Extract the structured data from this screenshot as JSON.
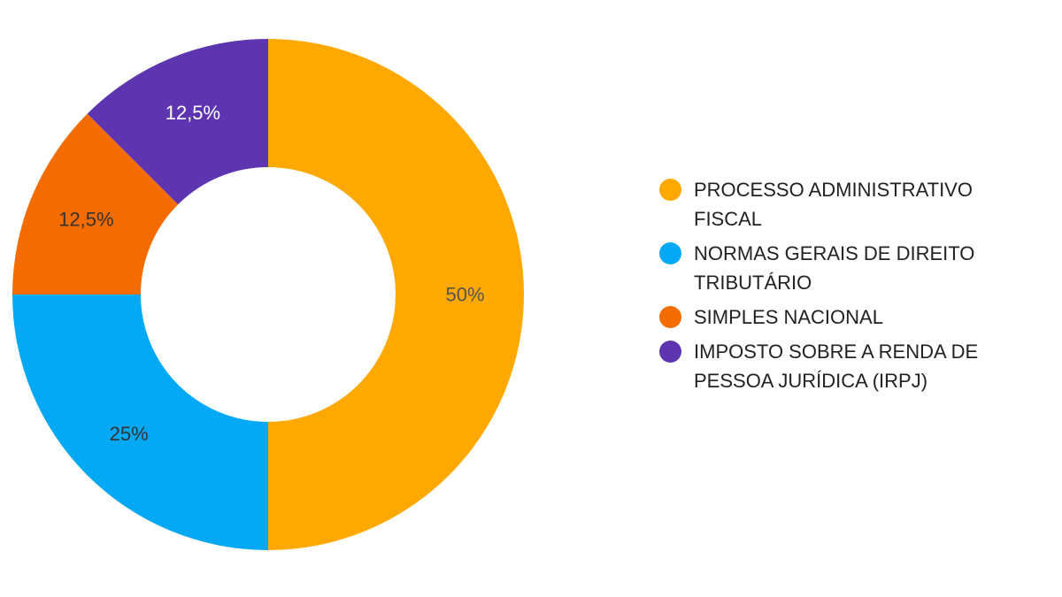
{
  "chart_data": {
    "type": "pie",
    "variant": "donut",
    "title": "",
    "legend_position": "right",
    "start_angle_deg": 0,
    "direction": "clockwise",
    "slices": [
      {
        "name": "PROCESSO ADMINISTRATIVO FISCAL",
        "value": 50,
        "label": "50%",
        "color": "#FFA800",
        "label_color": "#555555"
      },
      {
        "name": "NORMAS GERAIS DE DIREITO TRIBUTÁRIO",
        "value": 25,
        "label": "25%",
        "color": "#03A9F4",
        "label_color": "#333333"
      },
      {
        "name": "SIMPLES NACIONAL",
        "value": 12.5,
        "label": "12,5%",
        "color": "#F46C00",
        "label_color": "#333333"
      },
      {
        "name": "IMPOSTO SOBRE A RENDA DE PESSOA JURÍDICA (IRPJ)",
        "value": 12.5,
        "label": "12,5%",
        "color": "#5E35B1",
        "label_color": "#ffffff"
      }
    ]
  }
}
